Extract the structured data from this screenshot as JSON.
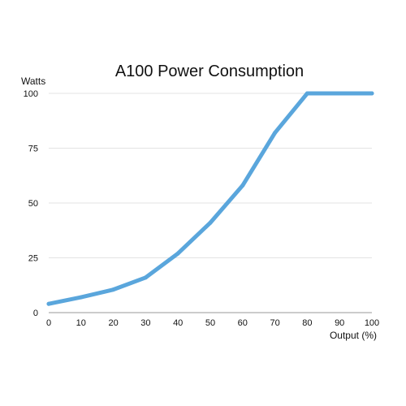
{
  "chart_data": {
    "type": "line",
    "title": "A100 Power Consumption",
    "xlabel": "Output (%)",
    "ylabel": "Watts",
    "x": [
      0,
      10,
      20,
      30,
      40,
      50,
      60,
      70,
      80,
      90,
      100
    ],
    "series": [
      {
        "values": [
          4,
          7,
          10.5,
          16,
          27,
          41,
          58,
          82,
          100,
          100,
          100
        ]
      }
    ],
    "xlim": [
      0,
      100
    ],
    "ylim": [
      0,
      100
    ],
    "xticks": [
      "0",
      "10",
      "20",
      "30",
      "40",
      "50",
      "60",
      "70",
      "80",
      "90",
      "100"
    ],
    "yticks": [
      "0",
      "25",
      "50",
      "75",
      "100"
    ],
    "grid": "horizontal",
    "legend": "none",
    "colors": {
      "line": "#5aa6dc",
      "grid": "#e3e3e3",
      "axis": "#9a9a9a",
      "text": "#111111",
      "background": "#ffffff"
    }
  }
}
